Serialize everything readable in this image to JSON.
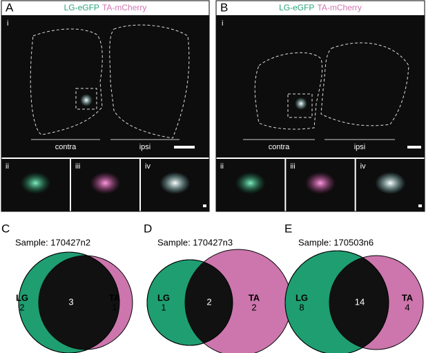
{
  "panels": [
    {
      "letter": "A",
      "legend": [
        "LG-eGFP",
        "TA-mCherry"
      ],
      "main_label": "i",
      "sides": [
        "contra",
        "ipsi"
      ],
      "insets": [
        "ii",
        "iii",
        "iv"
      ]
    },
    {
      "letter": "B",
      "legend": [
        "LG-eGFP",
        "TA-mCherry"
      ],
      "main_label": "i",
      "sides": [
        "contra",
        "ipsi"
      ],
      "insets": [
        "ii",
        "iii",
        "iv"
      ]
    }
  ],
  "venns": [
    {
      "letter": "C",
      "sample": "Sample: 170427n2",
      "left": {
        "name": "LG",
        "count": 2
      },
      "overlap": 3,
      "right": {
        "name": "TA",
        "count": 1
      }
    },
    {
      "letter": "D",
      "sample": "Sample: 170427n3",
      "left": {
        "name": "LG",
        "count": 1
      },
      "overlap": 2,
      "right": {
        "name": "TA",
        "count": 2
      }
    },
    {
      "letter": "E",
      "sample": "Sample: 170503n6",
      "left": {
        "name": "LG",
        "count": 8
      },
      "overlap": 14,
      "right": {
        "name": "TA",
        "count": 4
      }
    }
  ]
}
